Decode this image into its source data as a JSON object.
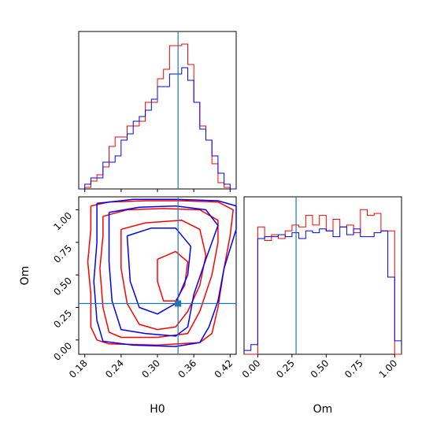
{
  "chart_data": [
    {
      "type": "histogram",
      "panel": "H0 marginal",
      "x_bin_edges": [
        0.17,
        0.18,
        0.19,
        0.2,
        0.21,
        0.22,
        0.23,
        0.24,
        0.25,
        0.26,
        0.27,
        0.28,
        0.29,
        0.3,
        0.31,
        0.32,
        0.33,
        0.34,
        0.35,
        0.36,
        0.37,
        0.38,
        0.39,
        0.4,
        0.41,
        0.42,
        0.43
      ],
      "xlim": [
        0.17,
        0.43
      ],
      "truth": 0.334,
      "series": [
        {
          "color": "#ff0000",
          "values": [
            0,
            0.01,
            0.05,
            0.09,
            0.14,
            0.27,
            0.33,
            0.33,
            0.4,
            0.4,
            0.43,
            0.55,
            0.55,
            0.7,
            0.76,
            0.91,
            0.91,
            0.92,
            0.79,
            0.55,
            0.4,
            0.31,
            0.16,
            0.04,
            0.01,
            0
          ]
        },
        {
          "color": "#0000ff",
          "values": [
            0,
            0.03,
            0.07,
            0.07,
            0.17,
            0.17,
            0.21,
            0.31,
            0.35,
            0.43,
            0.46,
            0.5,
            0.57,
            0.65,
            0.65,
            0.73,
            0.73,
            0.77,
            0.69,
            0.55,
            0.38,
            0.31,
            0.21,
            0.1,
            0.03,
            0
          ]
        }
      ]
    },
    {
      "type": "contour",
      "panel": "H0 vs Om",
      "xlabel": "H0",
      "ylabel": "Om",
      "xlim": [
        0.17,
        0.43
      ],
      "ylim": [
        -0.11,
        1.1
      ],
      "xticks": [
        0.18,
        0.24,
        0.3,
        0.36,
        0.42
      ],
      "xtick_labels": [
        "0.18",
        "0.24",
        "0.30",
        "0.36",
        "0.42"
      ],
      "yticks": [
        0.0,
        0.25,
        0.5,
        0.75,
        1.0
      ],
      "ytick_labels": [
        "0.00",
        "0.25",
        "0.50",
        "0.75",
        "1.00"
      ],
      "truth": {
        "H0": 0.334,
        "Om": 0.28
      },
      "series": [
        {
          "color": "#ff0000",
          "contours": [
            [
              [
                0.19,
                1.03
              ],
              [
                0.22,
                1.06
              ],
              [
                0.28,
                1.07
              ],
              [
                0.34,
                1.07
              ],
              [
                0.4,
                1.06
              ],
              [
                0.425,
                1.0
              ],
              [
                0.42,
                0.8
              ],
              [
                0.41,
                0.55
              ],
              [
                0.4,
                0.25
              ],
              [
                0.39,
                0.05
              ],
              [
                0.37,
                -0.02
              ],
              [
                0.3,
                -0.04
              ],
              [
                0.22,
                -0.03
              ],
              [
                0.2,
                0.0
              ],
              [
                0.19,
                0.1
              ],
              [
                0.19,
                0.35
              ],
              [
                0.185,
                0.6
              ],
              [
                0.19,
                0.85
              ],
              [
                0.19,
                1.03
              ]
            ],
            [
              [
                0.21,
                0.95
              ],
              [
                0.25,
                1.0
              ],
              [
                0.31,
                1.01
              ],
              [
                0.37,
                1.0
              ],
              [
                0.4,
                0.92
              ],
              [
                0.4,
                0.75
              ],
              [
                0.39,
                0.5
              ],
              [
                0.37,
                0.22
              ],
              [
                0.35,
                0.05
              ],
              [
                0.3,
                0.02
              ],
              [
                0.24,
                0.02
              ],
              [
                0.22,
                0.06
              ],
              [
                0.21,
                0.25
              ],
              [
                0.205,
                0.55
              ],
              [
                0.21,
                0.8
              ],
              [
                0.21,
                0.95
              ]
            ],
            [
              [
                0.24,
                0.85
              ],
              [
                0.28,
                0.9
              ],
              [
                0.34,
                0.92
              ],
              [
                0.37,
                0.85
              ],
              [
                0.38,
                0.65
              ],
              [
                0.37,
                0.42
              ],
              [
                0.35,
                0.22
              ],
              [
                0.33,
                0.1
              ],
              [
                0.3,
                0.08
              ],
              [
                0.27,
                0.12
              ],
              [
                0.25,
                0.28
              ],
              [
                0.24,
                0.55
              ],
              [
                0.24,
                0.85
              ]
            ],
            [
              [
                0.3,
                0.62
              ],
              [
                0.33,
                0.68
              ],
              [
                0.35,
                0.6
              ],
              [
                0.345,
                0.42
              ],
              [
                0.33,
                0.3
              ],
              [
                0.31,
                0.3
              ],
              [
                0.3,
                0.45
              ],
              [
                0.3,
                0.62
              ]
            ]
          ]
        },
        {
          "color": "#0000ff",
          "contours": [
            [
              [
                0.2,
                1.05
              ],
              [
                0.26,
                1.08
              ],
              [
                0.33,
                1.08
              ],
              [
                0.4,
                1.07
              ],
              [
                0.43,
                1.03
              ],
              [
                0.43,
                0.85
              ],
              [
                0.41,
                0.55
              ],
              [
                0.4,
                0.3
              ],
              [
                0.385,
                0.1
              ],
              [
                0.37,
                -0.02
              ],
              [
                0.33,
                -0.05
              ],
              [
                0.26,
                -0.04
              ],
              [
                0.21,
                -0.01
              ],
              [
                0.2,
                0.15
              ],
              [
                0.195,
                0.45
              ],
              [
                0.2,
                0.75
              ],
              [
                0.2,
                1.05
              ]
            ],
            [
              [
                0.22,
                0.98
              ],
              [
                0.27,
                1.02
              ],
              [
                0.33,
                1.03
              ],
              [
                0.38,
                1.0
              ],
              [
                0.4,
                0.88
              ],
              [
                0.38,
                0.62
              ],
              [
                0.36,
                0.35
              ],
              [
                0.35,
                0.1
              ],
              [
                0.33,
                0.03
              ],
              [
                0.28,
                0.05
              ],
              [
                0.24,
                0.08
              ],
              [
                0.225,
                0.3
              ],
              [
                0.22,
                0.6
              ],
              [
                0.22,
                0.98
              ]
            ],
            [
              [
                0.25,
                0.8
              ],
              [
                0.29,
                0.86
              ],
              [
                0.33,
                0.86
              ],
              [
                0.355,
                0.72
              ],
              [
                0.35,
                0.5
              ],
              [
                0.33,
                0.28
              ],
              [
                0.3,
                0.2
              ],
              [
                0.27,
                0.25
              ],
              [
                0.255,
                0.45
              ],
              [
                0.25,
                0.8
              ]
            ]
          ]
        }
      ]
    },
    {
      "type": "histogram",
      "panel": "Om marginal",
      "xlabel": "Om",
      "x_bin_edges": [
        -0.1,
        -0.05,
        0.0,
        0.05,
        0.1,
        0.15,
        0.2,
        0.25,
        0.3,
        0.35,
        0.4,
        0.45,
        0.5,
        0.55,
        0.6,
        0.65,
        0.7,
        0.75,
        0.8,
        0.85,
        0.9,
        0.95,
        1.0,
        1.05
      ],
      "xlim": [
        -0.1,
        1.05
      ],
      "xticks": [
        0.0,
        0.25,
        0.5,
        0.75,
        1.0
      ],
      "xtick_labels": [
        "0.00",
        "0.25",
        "0.50",
        "0.75",
        "1.00"
      ],
      "truth": 0.28,
      "series": [
        {
          "color": "#ff0000",
          "values": [
            0,
            0,
            0.66,
            0.59,
            0.62,
            0.6,
            0.64,
            0.67,
            0.66,
            0.72,
            0.67,
            0.72,
            0.64,
            0.7,
            0.66,
            0.67,
            0.63,
            0.75,
            0.72,
            0.73,
            0.64,
            0.64,
            0
          ]
        },
        {
          "color": "#0000ff",
          "values": [
            0.02,
            0.05,
            0.6,
            0.61,
            0.61,
            0.62,
            0.61,
            0.63,
            0.6,
            0.64,
            0.63,
            0.65,
            0.64,
            0.61,
            0.66,
            0.62,
            0.65,
            0.61,
            0.61,
            0.63,
            0.64,
            0.4,
            0.07
          ]
        }
      ]
    }
  ]
}
